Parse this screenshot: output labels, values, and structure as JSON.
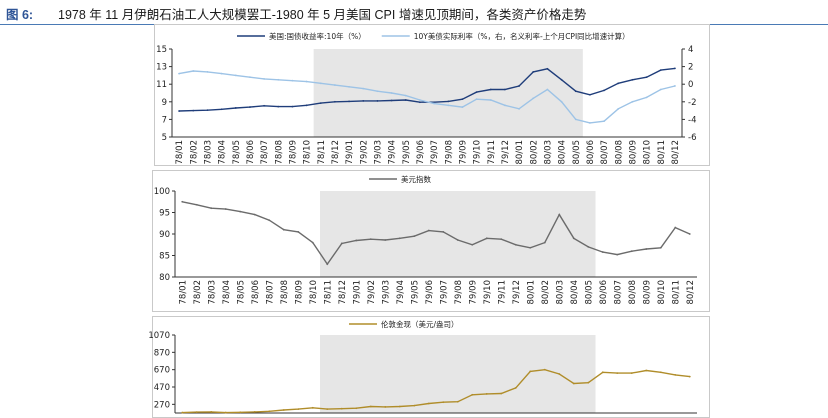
{
  "header": {
    "fig_label": "图 6:",
    "title": "1978 年 11 月伊朗石油工人大规模罢工-1980 年 5 月美国 CPI 增速见顶期间，各类资产价格走势"
  },
  "colors": {
    "treasury": "#1f3d7a",
    "real_rate": "#9dc3e6",
    "dxy": "#6b6b6b",
    "gold": "#b08d2a",
    "shade": "#e6e6e6",
    "title_rule": "#4a7ab5"
  },
  "chart_data": [
    {
      "type": "line",
      "x": [
        "78/01",
        "78/02",
        "78/03",
        "78/04",
        "78/05",
        "78/06",
        "78/07",
        "78/08",
        "78/09",
        "78/10",
        "78/11",
        "78/12",
        "79/01",
        "79/02",
        "79/03",
        "79/04",
        "79/05",
        "79/06",
        "79/07",
        "79/08",
        "79/09",
        "79/10",
        "79/11",
        "79/12",
        "80/01",
        "80/02",
        "80/03",
        "80/04",
        "80/05",
        "80/06",
        "80/07",
        "80/08",
        "80/09",
        "80/10",
        "80/11",
        "80/12"
      ],
      "shaded_range": [
        "78/11",
        "80/05"
      ],
      "left_axis": {
        "ylim": [
          5,
          15
        ],
        "ticks": [
          "5",
          "7",
          "9",
          "11",
          "13",
          "15"
        ]
      },
      "right_axis": {
        "ylim": [
          -6,
          4
        ],
        "ticks": [
          "-6",
          "-4",
          "-2",
          "0",
          "2",
          "4"
        ]
      },
      "series": [
        {
          "name": "美国:国债收益率:10年（%）",
          "axis": "left",
          "values": [
            7.95,
            8.0,
            8.05,
            8.15,
            8.3,
            8.4,
            8.55,
            8.45,
            8.45,
            8.6,
            8.85,
            9.0,
            9.05,
            9.1,
            9.1,
            9.15,
            9.2,
            8.95,
            8.95,
            9.05,
            9.3,
            10.1,
            10.4,
            10.4,
            10.8,
            12.4,
            12.75,
            11.5,
            10.2,
            9.8,
            10.3,
            11.1,
            11.5,
            11.8,
            12.6,
            12.8
          ]
        },
        {
          "name": "10Y美债实际利率（%，右，名义利率-上个月CPI同比增速计算）",
          "axis": "right",
          "values": [
            1.2,
            1.5,
            1.4,
            1.2,
            1.0,
            0.8,
            0.6,
            0.5,
            0.4,
            0.3,
            0.1,
            -0.1,
            -0.3,
            -0.5,
            -0.8,
            -1.0,
            -1.3,
            -1.8,
            -2.2,
            -2.4,
            -2.6,
            -1.7,
            -1.8,
            -2.4,
            -2.8,
            -1.6,
            -0.6,
            -2.0,
            -4.0,
            -4.4,
            -4.2,
            -2.8,
            -2.0,
            -1.5,
            -0.6,
            -0.2
          ]
        }
      ]
    },
    {
      "type": "line",
      "x": [
        "78/01",
        "78/02",
        "78/03",
        "78/04",
        "78/05",
        "78/06",
        "78/07",
        "78/08",
        "78/09",
        "78/10",
        "78/11",
        "78/12",
        "79/01",
        "79/02",
        "79/03",
        "79/04",
        "79/05",
        "79/06",
        "79/07",
        "79/08",
        "79/09",
        "79/10",
        "79/11",
        "79/12",
        "80/01",
        "80/02",
        "80/03",
        "80/04",
        "80/05",
        "80/06",
        "80/07",
        "80/08",
        "80/09",
        "80/10",
        "80/11",
        "80/12"
      ],
      "shaded_range": [
        "78/11",
        "80/05"
      ],
      "ylim": [
        80,
        100
      ],
      "ticks": [
        "80",
        "85",
        "90",
        "95",
        "100"
      ],
      "series": [
        {
          "name": "美元指数",
          "values": [
            97.5,
            96.8,
            96.0,
            95.8,
            95.2,
            94.5,
            93.2,
            91.0,
            90.5,
            88.0,
            83.0,
            87.8,
            88.5,
            88.8,
            88.6,
            89.0,
            89.5,
            90.8,
            90.5,
            88.6,
            87.5,
            89.0,
            88.8,
            87.5,
            86.8,
            88.0,
            94.5,
            89.0,
            87.0,
            85.8,
            85.2,
            86.0,
            86.5,
            86.8,
            91.5,
            90.0
          ]
        }
      ]
    },
    {
      "type": "line",
      "x": [
        "78/01",
        "78/02",
        "78/03",
        "78/04",
        "78/05",
        "78/06",
        "78/07",
        "78/08",
        "78/09",
        "78/10",
        "78/11",
        "78/12",
        "79/01",
        "79/02",
        "79/03",
        "79/04",
        "79/05",
        "79/06",
        "79/07",
        "79/08",
        "79/09",
        "79/10",
        "79/11",
        "79/12",
        "80/01",
        "80/02",
        "80/03",
        "80/04",
        "80/05",
        "80/06",
        "80/07",
        "80/08",
        "80/09",
        "80/10",
        "80/11",
        "80/12"
      ],
      "shaded_range": [
        "78/11",
        "80/05"
      ],
      "ylim": [
        170,
        1070
      ],
      "ticks": [
        "270",
        "470",
        "670",
        "870",
        "1070"
      ],
      "series": [
        {
          "name": "伦敦金现（美元/盎司）",
          "values": [
            175,
            180,
            182,
            175,
            178,
            183,
            190,
            205,
            215,
            230,
            215,
            220,
            225,
            245,
            240,
            245,
            255,
            280,
            295,
            300,
            380,
            390,
            395,
            460,
            650,
            670,
            620,
            510,
            520,
            640,
            630,
            630,
            660,
            640,
            610,
            590
          ]
        }
      ]
    }
  ]
}
